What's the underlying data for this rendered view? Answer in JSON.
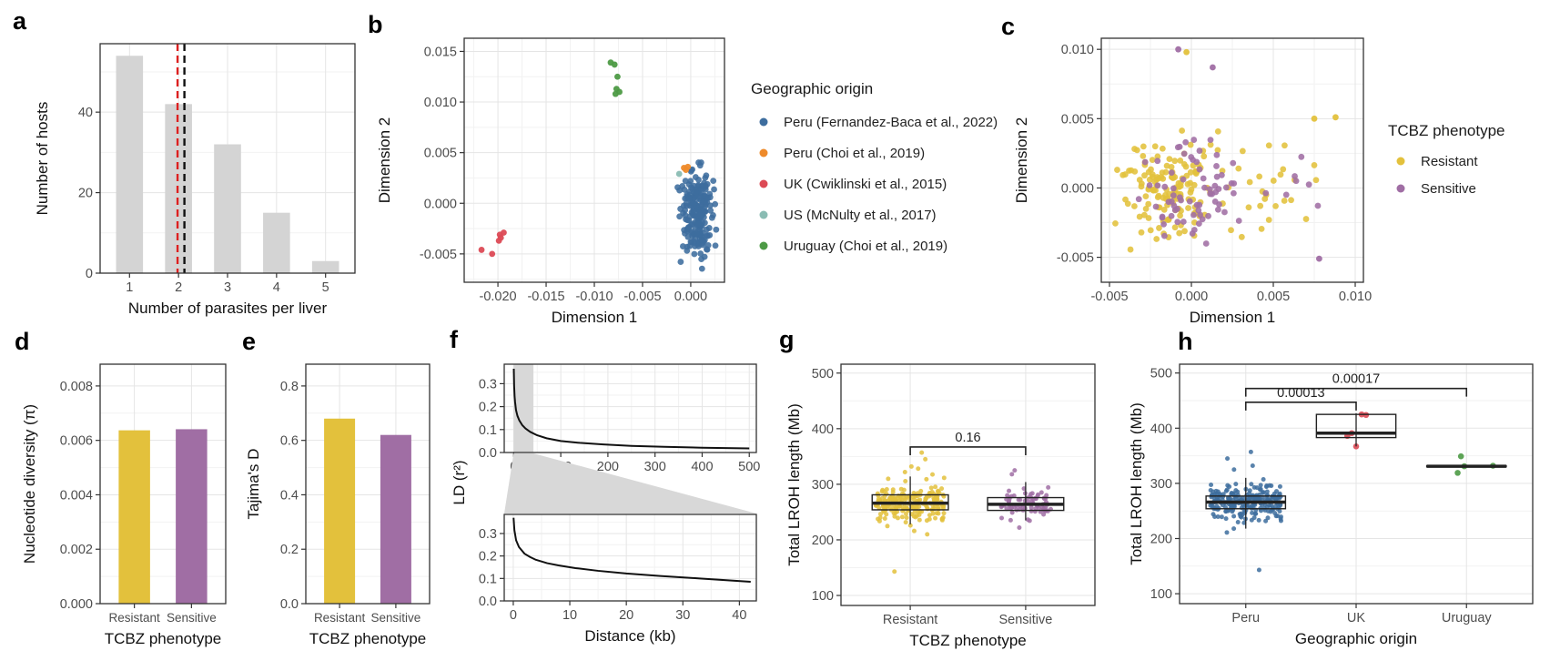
{
  "panels": {
    "a": {
      "letter": "a"
    },
    "b": {
      "letter": "b"
    },
    "c": {
      "letter": "c"
    },
    "d": {
      "letter": "d"
    },
    "e": {
      "letter": "e"
    },
    "f": {
      "letter": "f"
    },
    "g": {
      "letter": "g"
    },
    "h": {
      "letter": "h"
    }
  },
  "colors": {
    "bar_gray": "#d4d4d4",
    "grid_major": "#e5e5e5",
    "grid_minor": "#f2f2f2",
    "frame": "#333333",
    "tick_text": "#4d4d4d",
    "title_text": "#111111",
    "mean_line_red": "#dd2020",
    "mean_line_black": "#111111",
    "peru_blue": "#3d6d9e",
    "peru_choi_orange": "#ee8a2a",
    "uk_red": "#dc4a55",
    "us_teal": "#8abcb3",
    "uruguay_green": "#4d9a45",
    "resistant_yellow": "#e3c13c",
    "sensitive_purple": "#a06ea4",
    "shade_gray": "#d8d8d8",
    "curve_black": "#111111"
  },
  "chart_data": [
    {
      "panel": "a",
      "type": "bar",
      "title": "",
      "categories": [
        "1",
        "2",
        "3",
        "4",
        "5"
      ],
      "values": [
        54,
        42,
        32,
        15,
        3
      ],
      "bar_color": "bar_gray",
      "bar_width": 0.55,
      "xlabel": "Number of parasites per liver",
      "ylabel": "Number of hosts",
      "ylim": [
        0,
        57
      ],
      "yticks": [
        0,
        20,
        40
      ],
      "ytick_labels": [
        "0",
        "20",
        "40"
      ],
      "vlines": [
        {
          "x": 1.98,
          "color_key": "mean_line_red",
          "style": "dashed"
        },
        {
          "x": 2.12,
          "color_key": "mean_line_black",
          "style": "dashed"
        }
      ]
    },
    {
      "panel": "b",
      "type": "scatter",
      "xlabel": "Dimension 1",
      "ylabel": "Dimension 2",
      "xlim": [
        -0.0235,
        0.0035
      ],
      "ylim": [
        -0.0078,
        0.0163
      ],
      "xticks": [
        -0.02,
        -0.015,
        -0.01,
        -0.005,
        0
      ],
      "xtick_labels": [
        "-0.020",
        "-0.015",
        "-0.010",
        "-0.005",
        "0.000"
      ],
      "yticks": [
        -0.005,
        0,
        0.005,
        0.01,
        0.015
      ],
      "ytick_labels": [
        "-0.005",
        "0.000",
        "0.005",
        "0.010",
        "0.015"
      ],
      "legend": {
        "title": "Geographic origin",
        "items": [
          {
            "label": "Peru (Fernandez-Baca et al., 2022)",
            "color_key": "peru_blue"
          },
          {
            "label": "Peru (Choi et al., 2019)",
            "color_key": "peru_choi_orange"
          },
          {
            "label": "UK (Cwiklinski et al., 2015)",
            "color_key": "uk_red"
          },
          {
            "label": "US (McNulty et al., 2017)",
            "color_key": "us_teal"
          },
          {
            "label": "Uruguay (Choi et al., 2019)",
            "color_key": "uruguay_green"
          }
        ]
      },
      "clusters": [
        {
          "name": "Peru (Fernandez-Baca et al., 2022)",
          "color_key": "peru_blue",
          "n": 215,
          "cx": 0.0007,
          "cy": -0.0009,
          "sx": 0.00085,
          "sy": 0.0024,
          "seed": 21,
          "clip": [
            -0.0014,
            0.0029,
            -0.0067,
            0.0041
          ]
        }
      ],
      "point_groups": [
        {
          "name": "Uruguay (Choi et al., 2019)",
          "color_key": "uruguay_green",
          "pts": [
            [
              -0.0083,
              0.0139
            ],
            [
              -0.0079,
              0.0137
            ],
            [
              -0.0076,
              0.0125
            ],
            [
              -0.0077,
              0.0113
            ],
            [
              -0.0078,
              0.0108
            ],
            [
              -0.0074,
              0.011
            ]
          ]
        },
        {
          "name": "UK (Cwiklinski et al., 2015)",
          "color_key": "uk_red",
          "pts": [
            [
              -0.0217,
              -0.0046
            ],
            [
              -0.0206,
              -0.005
            ],
            [
              -0.0199,
              -0.0037
            ],
            [
              -0.0198,
              -0.0031
            ],
            [
              -0.0194,
              -0.0029
            ],
            [
              -0.0197,
              -0.0034
            ]
          ]
        },
        {
          "name": "Peru (Choi et al., 2019)",
          "color_key": "peru_choi_orange",
          "pts": [
            [
              -0.0007,
              0.0035
            ],
            [
              -0.0003,
              0.0036
            ],
            [
              -0.0005,
              0.0033
            ]
          ]
        },
        {
          "name": "US (McNulty et al., 2017)",
          "color_key": "us_teal",
          "pts": [
            [
              -0.0012,
              0.0029
            ]
          ]
        }
      ]
    },
    {
      "panel": "c",
      "type": "scatter",
      "xlabel": "Dimension 1",
      "ylabel": "Dimension 2",
      "xlim": [
        -0.0055,
        0.0105
      ],
      "ylim": [
        -0.0068,
        0.0108
      ],
      "xticks": [
        -0.005,
        0,
        0.005,
        0.01
      ],
      "xtick_labels": [
        "-0.005",
        "0.000",
        "0.005",
        "0.010"
      ],
      "yticks": [
        -0.005,
        0,
        0.005,
        0.01
      ],
      "ytick_labels": [
        "-0.005",
        "0.000",
        "0.005",
        "0.010"
      ],
      "legend": {
        "title": "TCBZ phenotype",
        "items": [
          {
            "label": "Resistant",
            "color_key": "resistant_yellow"
          },
          {
            "label": "Sensitive",
            "color_key": "sensitive_purple"
          }
        ]
      },
      "clusters": [
        {
          "name": "Resistant main",
          "color_key": "resistant_yellow",
          "n": 150,
          "cx": -0.0012,
          "cy": 0.0001,
          "sx": 0.0015,
          "sy": 0.0019,
          "seed": 31,
          "clip": [
            -0.0048,
            0.004,
            -0.0063,
            0.0042
          ]
        },
        {
          "name": "Resistant right",
          "color_key": "resistant_yellow",
          "n": 25,
          "cx": 0.005,
          "cy": 0.0003,
          "sx": 0.0022,
          "sy": 0.0021,
          "seed": 32,
          "clip": [
            0.002,
            0.0095,
            -0.005,
            0.0052
          ]
        },
        {
          "name": "Sensitive main",
          "color_key": "sensitive_purple",
          "n": 70,
          "cx": -0.0003,
          "cy": -0.0003,
          "sx": 0.0016,
          "sy": 0.002,
          "seed": 33,
          "clip": [
            -0.004,
            0.0038,
            -0.0062,
            0.004
          ]
        },
        {
          "name": "Sensitive right",
          "color_key": "sensitive_purple",
          "n": 7,
          "cx": 0.0062,
          "cy": 0.0008,
          "sx": 0.0016,
          "sy": 0.0016,
          "seed": 34,
          "clip": [
            0.004,
            0.009,
            -0.002,
            0.0036
          ]
        }
      ],
      "point_groups": [
        {
          "name": "Sensitive outliers",
          "color_key": "sensitive_purple",
          "pts": [
            [
              -0.0008,
              0.01
            ],
            [
              0.0013,
              0.0087
            ],
            [
              0.0078,
              -0.0051
            ]
          ]
        },
        {
          "name": "Resistant outliers",
          "color_key": "resistant_yellow",
          "pts": [
            [
              -0.0003,
              0.0098
            ],
            [
              0.0088,
              0.0051
            ],
            [
              0.0075,
              0.005
            ]
          ]
        }
      ]
    },
    {
      "panel": "d",
      "type": "bar",
      "categories": [
        "Resistant",
        "Sensitive"
      ],
      "values": [
        0.00637,
        0.00641
      ],
      "bar_colors": [
        "resistant_yellow",
        "sensitive_purple"
      ],
      "bar_width": 0.55,
      "xlabel": "TCBZ phenotype",
      "ylabel": "Nucleotide diversity (π)",
      "ylim": [
        0,
        0.0088
      ],
      "yticks": [
        0,
        0.002,
        0.004,
        0.006,
        0.008
      ],
      "ytick_labels": [
        "0.000",
        "0.002",
        "0.004",
        "0.006",
        "0.008"
      ]
    },
    {
      "panel": "e",
      "type": "bar",
      "categories": [
        "Resistant",
        "Sensitive"
      ],
      "values": [
        0.68,
        0.62
      ],
      "bar_colors": [
        "resistant_yellow",
        "sensitive_purple"
      ],
      "bar_width": 0.55,
      "xlabel": "TCBZ phenotype",
      "ylabel": "Tajima's D",
      "ylim": [
        0,
        0.88
      ],
      "yticks": [
        0,
        0.2,
        0.4,
        0.6,
        0.8
      ],
      "ytick_labels": [
        "0.0",
        "0.2",
        "0.4",
        "0.6",
        "0.8"
      ]
    },
    {
      "panel": "f",
      "type": "ld_decay",
      "xlabel": "Distance (kb)",
      "ylabel": "LD (r²)",
      "ylim": [
        0,
        0.385
      ],
      "yticks": [
        0,
        0.1,
        0.2,
        0.3
      ],
      "ytick_labels": [
        "0.0",
        "0.1",
        "0.2",
        "0.3"
      ],
      "zoom_window_kb": [
        0,
        42
      ],
      "shade_color_key": "shade_gray",
      "top": {
        "xlim": [
          -20,
          515
        ],
        "xticks": [
          0,
          100,
          200,
          300,
          400,
          500
        ],
        "xtick_labels": [
          "0",
          "100",
          "200",
          "300",
          "400",
          "500"
        ],
        "x": [
          0.3,
          1,
          2,
          3,
          5,
          8,
          12,
          18,
          25,
          35,
          50,
          70,
          100,
          140,
          190,
          250,
          320,
          400,
          500
        ],
        "y": [
          0.365,
          0.29,
          0.245,
          0.22,
          0.185,
          0.16,
          0.14,
          0.12,
          0.105,
          0.09,
          0.075,
          0.062,
          0.05,
          0.042,
          0.035,
          0.029,
          0.025,
          0.021,
          0.018
        ]
      },
      "bottom": {
        "xlim": [
          -1.6,
          43
        ],
        "xticks": [
          0,
          10,
          20,
          30,
          40
        ],
        "xtick_labels": [
          "0",
          "10",
          "20",
          "30",
          "40"
        ],
        "x": [
          0.05,
          0.2,
          0.5,
          1,
          1.5,
          2,
          3,
          4,
          6,
          8,
          11,
          15,
          20,
          26,
          33,
          42
        ],
        "y": [
          0.37,
          0.315,
          0.27,
          0.24,
          0.225,
          0.21,
          0.195,
          0.183,
          0.168,
          0.158,
          0.146,
          0.134,
          0.122,
          0.111,
          0.1,
          0.085
        ]
      }
    },
    {
      "panel": "g",
      "type": "boxjitter",
      "xlabel": "TCBZ phenotype",
      "ylabel": "Total LROH length (Mb)",
      "ylim": [
        82,
        516
      ],
      "yticks": [
        100,
        200,
        300,
        400,
        500
      ],
      "ytick_labels": [
        "100",
        "200",
        "300",
        "400",
        "500"
      ],
      "box_hw": 0.33,
      "groups": [
        {
          "label": "Resistant",
          "color_key": "resistant_yellow",
          "n": 210,
          "mean": 267,
          "sd": 16,
          "seed": 41,
          "clip": [
            222,
            330
          ],
          "jw": 0.3,
          "extras": [
            357,
            345,
            332,
            328,
            322,
            210,
            216,
            143
          ],
          "box": {
            "lo": 228,
            "q1": 254,
            "med": 266,
            "q3": 281,
            "hi": 314
          }
        },
        {
          "label": "Sensitive",
          "color_key": "sensitive_purple",
          "n": 74,
          "mean": 265,
          "sd": 15,
          "seed": 42,
          "clip": [
            226,
            316
          ],
          "jw": 0.22,
          "extras": [
            325,
            318,
            222
          ],
          "box": {
            "lo": 235,
            "q1": 253,
            "med": 264,
            "q3": 276,
            "hi": 304
          }
        }
      ],
      "brackets": [
        {
          "g1": 0,
          "g2": 1,
          "y": 367,
          "label": "0.16"
        }
      ]
    },
    {
      "panel": "h",
      "type": "boxjitter",
      "xlabel": "Geographic origin",
      "ylabel": "Total LROH length (Mb)",
      "ylim": [
        82,
        516
      ],
      "yticks": [
        100,
        200,
        300,
        400,
        500
      ],
      "ytick_labels": [
        "100",
        "200",
        "300",
        "400",
        "500"
      ],
      "box_hw": 0.36,
      "groups": [
        {
          "label": "Peru",
          "color_key": "peru_blue",
          "n": 225,
          "mean": 266,
          "sd": 16,
          "seed": 51,
          "clip": [
            215,
            312
          ],
          "jw": 0.32,
          "extras": [
            357,
            345,
            332,
            325,
            211,
            218,
            143
          ],
          "box": {
            "lo": 218,
            "q1": 254,
            "med": 266,
            "q3": 277,
            "hi": 310
          }
        },
        {
          "label": "UK",
          "color_key": "uk_red",
          "points": [
            {
              "dx": 0.05,
              "y": 425
            },
            {
              "dx": 0.09,
              "y": 424
            },
            {
              "dx": -0.04,
              "y": 391
            },
            {
              "dx": -0.08,
              "y": 386
            },
            {
              "dx": 0.0,
              "y": 367
            }
          ],
          "box": {
            "lo": 367,
            "q1": 383,
            "med": 391,
            "q3": 425,
            "hi": 427
          }
        },
        {
          "label": "Uruguay",
          "color_key": "uruguay_green",
          "points": [
            {
              "dx": -0.05,
              "y": 349
            },
            {
              "dx": -0.02,
              "y": 331
            },
            {
              "dx": -0.08,
              "y": 319
            },
            {
              "dx": 0.24,
              "y": 332
            }
          ],
          "box": {
            "lo": 331,
            "q1": 330,
            "med": 331,
            "q3": 332,
            "hi": 331
          }
        }
      ],
      "brackets": [
        {
          "g1": 0,
          "g2": 1,
          "y": 447,
          "label": "0.00013"
        },
        {
          "g1": 0,
          "g2": 2,
          "y": 472,
          "label": "0.00017"
        }
      ]
    }
  ]
}
